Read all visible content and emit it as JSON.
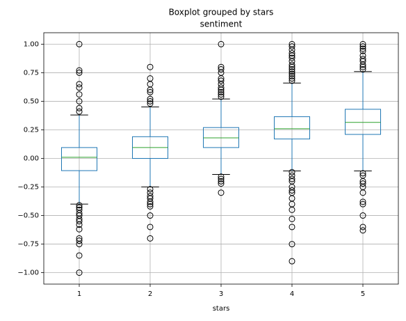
{
  "chart_data": {
    "type": "boxplot",
    "suptitle": "Boxplot grouped by stars",
    "title": "sentiment",
    "x_label": "stars",
    "categories": [
      "1",
      "2",
      "3",
      "4",
      "5"
    ],
    "color": "#1f77b4",
    "median_color": "#2ca02c",
    "grid": true,
    "ylim": [
      -1.1,
      1.1
    ],
    "yticks": [
      {
        "value": -1,
        "label": "−1.00"
      },
      {
        "value": -0.75,
        "label": "−0.75"
      },
      {
        "value": -0.5,
        "label": "−0.50"
      },
      {
        "value": -0.25,
        "label": "−0.25"
      },
      {
        "value": 0,
        "label": "0.00"
      },
      {
        "value": 0.25,
        "label": "0.25"
      },
      {
        "value": 0.5,
        "label": "0.50"
      },
      {
        "value": 0.75,
        "label": "0.75"
      },
      {
        "value": 1,
        "label": "1.00"
      }
    ],
    "boxes": [
      {
        "whislo": -0.4,
        "q1": -0.107,
        "med": 0.01,
        "q3": 0.095,
        "whishi": 0.38,
        "fliers": [
          1.0,
          0.77,
          0.75,
          0.65,
          0.62,
          0.56,
          0.5,
          0.44,
          0.41,
          -0.41,
          -0.43,
          -0.45,
          -0.48,
          -0.5,
          -0.53,
          -0.55,
          -0.58,
          -0.62,
          -0.7,
          -0.72,
          -0.75,
          -0.85,
          -1.0
        ]
      },
      {
        "whislo": -0.25,
        "q1": 0.0,
        "med": 0.095,
        "q3": 0.19,
        "whishi": 0.45,
        "fliers": [
          0.8,
          0.7,
          0.65,
          0.6,
          0.58,
          0.52,
          0.5,
          0.48,
          -0.27,
          -0.3,
          -0.33,
          -0.35,
          -0.38,
          -0.4,
          -0.42,
          -0.5,
          -0.6,
          -0.7
        ]
      },
      {
        "whislo": -0.14,
        "q1": 0.095,
        "med": 0.18,
        "q3": 0.27,
        "whishi": 0.52,
        "fliers": [
          1.0,
          0.8,
          0.78,
          0.75,
          0.7,
          0.68,
          0.65,
          0.62,
          0.6,
          0.58,
          0.56,
          0.54,
          -0.16,
          -0.18,
          -0.2,
          -0.22,
          -0.3
        ]
      },
      {
        "whislo": -0.11,
        "q1": 0.17,
        "med": 0.26,
        "q3": 0.365,
        "whishi": 0.66,
        "fliers": [
          1.0,
          0.98,
          0.95,
          0.92,
          0.9,
          0.88,
          0.85,
          0.82,
          0.8,
          0.78,
          0.76,
          0.74,
          0.72,
          0.7,
          0.68,
          -0.12,
          -0.15,
          -0.18,
          -0.2,
          -0.25,
          -0.28,
          -0.3,
          -0.35,
          -0.4,
          -0.45,
          -0.53,
          -0.6,
          -0.75,
          -0.9
        ]
      },
      {
        "whislo": -0.11,
        "q1": 0.21,
        "med": 0.315,
        "q3": 0.43,
        "whishi": 0.76,
        "fliers": [
          1.0,
          0.98,
          0.96,
          0.94,
          0.9,
          0.87,
          0.85,
          0.82,
          0.8,
          0.78,
          -0.13,
          -0.15,
          -0.2,
          -0.22,
          -0.25,
          -0.3,
          -0.38,
          -0.4,
          -0.5,
          -0.6,
          -0.63
        ]
      }
    ]
  }
}
